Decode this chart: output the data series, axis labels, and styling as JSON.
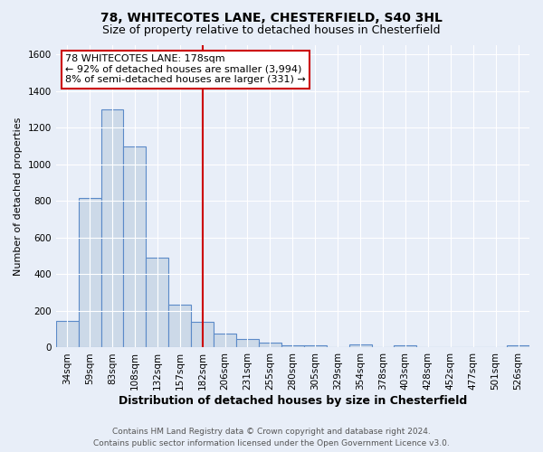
{
  "title": "78, WHITECOTES LANE, CHESTERFIELD, S40 3HL",
  "subtitle": "Size of property relative to detached houses in Chesterfield",
  "xlabel": "Distribution of detached houses by size in Chesterfield",
  "ylabel": "Number of detached properties",
  "footer_line1": "Contains HM Land Registry data © Crown copyright and database right 2024.",
  "footer_line2": "Contains public sector information licensed under the Open Government Licence v3.0.",
  "bin_labels": [
    "34sqm",
    "59sqm",
    "83sqm",
    "108sqm",
    "132sqm",
    "157sqm",
    "182sqm",
    "206sqm",
    "231sqm",
    "255sqm",
    "280sqm",
    "305sqm",
    "329sqm",
    "354sqm",
    "378sqm",
    "403sqm",
    "428sqm",
    "452sqm",
    "477sqm",
    "501sqm",
    "526sqm"
  ],
  "bar_values": [
    145,
    815,
    1300,
    1095,
    490,
    235,
    140,
    75,
    45,
    25,
    12,
    12,
    0,
    15,
    0,
    12,
    0,
    0,
    0,
    0,
    12
  ],
  "bar_color": "#ccd9e8",
  "bar_edge_color": "#5b8ac8",
  "vline_x": 6,
  "vline_color": "#cc0000",
  "annotation_line1": "78 WHITECOTES LANE: 178sqm",
  "annotation_line2": "← 92% of detached houses are smaller (3,994)",
  "annotation_line3": "8% of semi-detached houses are larger (331) →",
  "annotation_box_color": "#ffffff",
  "annotation_box_edge": "#cc0000",
  "ylim": [
    0,
    1650
  ],
  "yticks": [
    0,
    200,
    400,
    600,
    800,
    1000,
    1200,
    1400,
    1600
  ],
  "background_color": "#e8eef8",
  "plot_bg_color": "#e8eef8",
  "grid_color": "#ffffff",
  "title_fontsize": 10,
  "subtitle_fontsize": 9,
  "xlabel_fontsize": 9,
  "ylabel_fontsize": 8,
  "tick_fontsize": 7.5,
  "footer_fontsize": 6.5,
  "annotation_fontsize": 8
}
